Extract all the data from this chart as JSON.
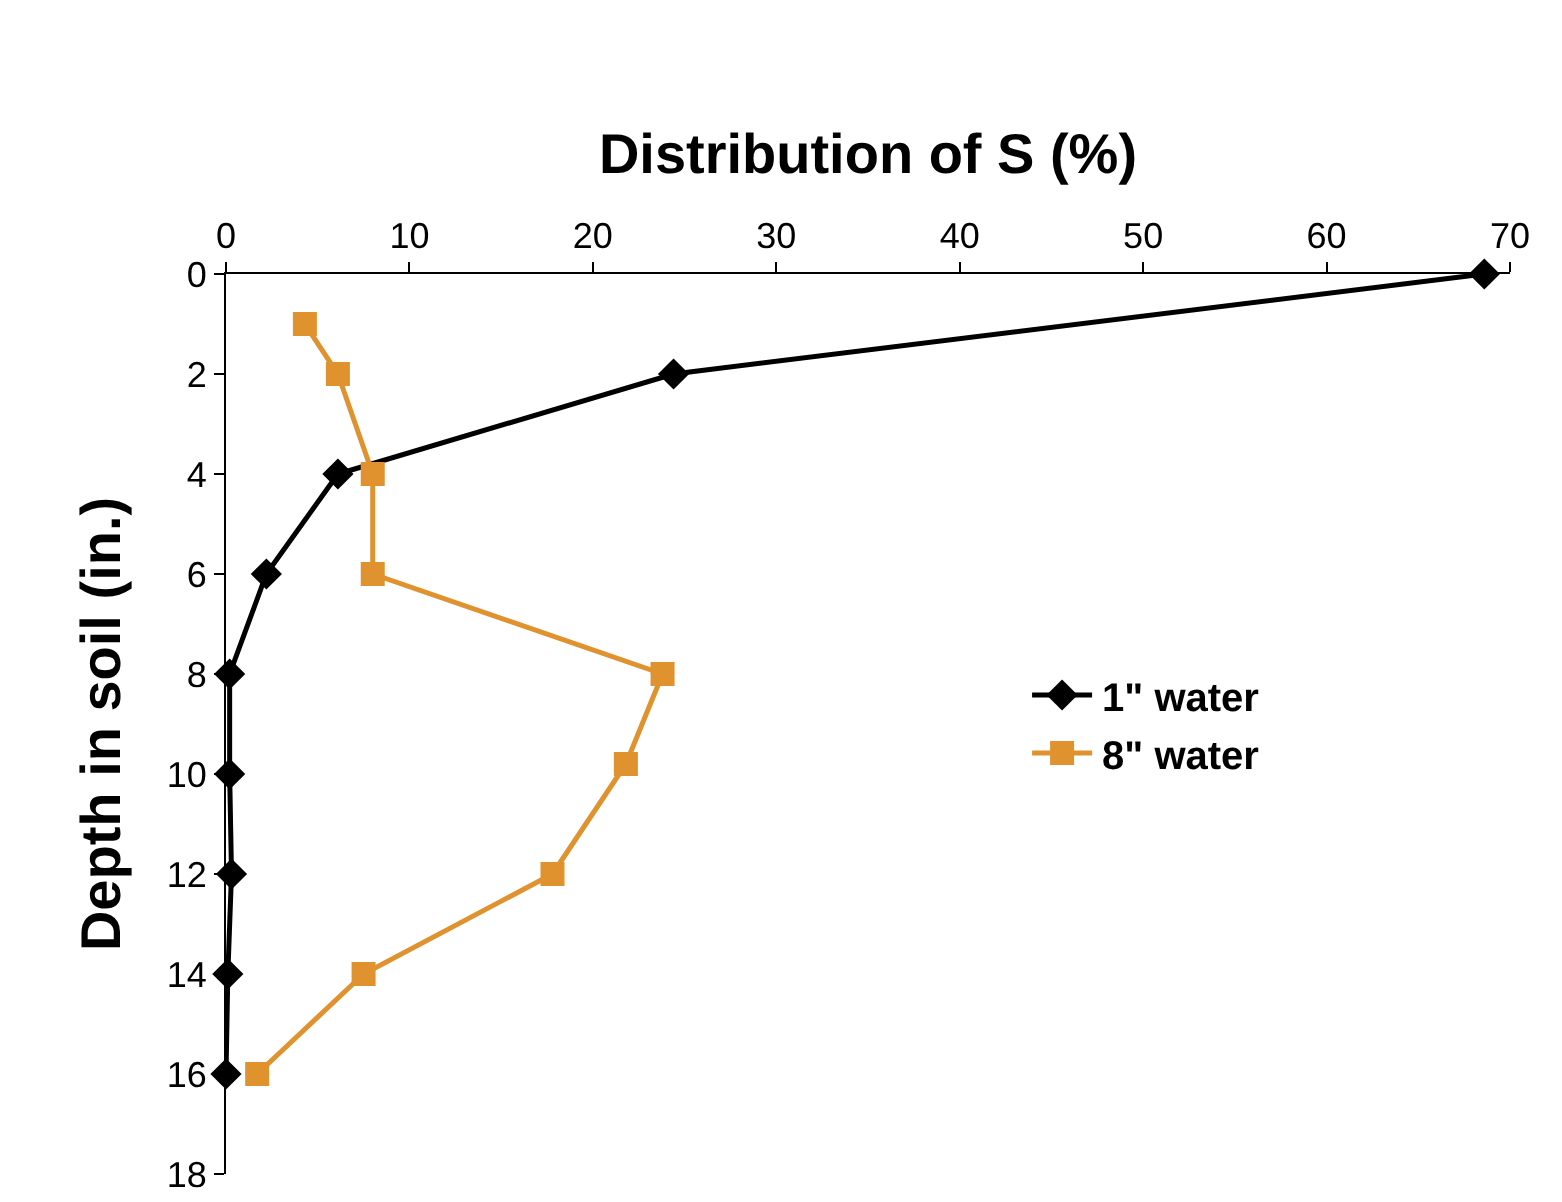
{
  "chart_data": {
    "type": "line",
    "xlabel": "Distribution of S (%)",
    "ylabel": "Depth in soil (in.)",
    "xlim": [
      0,
      70
    ],
    "xticks": [
      0,
      10,
      20,
      30,
      40,
      50,
      60,
      70
    ],
    "ylim": [
      18,
      0
    ],
    "yticks": [
      0,
      2,
      4,
      6,
      8,
      10,
      12,
      14,
      16,
      18
    ],
    "grid": false,
    "legend": "right",
    "line_style": "solid",
    "series": [
      {
        "name": "1\" water",
        "color": "#000000",
        "marker": "diamond",
        "x": [
          68.6,
          24.4,
          6.1,
          2.2,
          0.2,
          0.2,
          0.3,
          0.1,
          0
        ],
        "values": [
          0,
          2,
          4,
          6,
          8,
          10,
          12,
          14,
          16
        ]
      },
      {
        "name": "8\" water",
        "color": "#e0922f",
        "marker": "square",
        "x": [
          4.3,
          6.1,
          8.0,
          8.0,
          23.8,
          21.8,
          17.8,
          7.5,
          1.7
        ],
        "values": [
          1,
          2,
          4,
          6,
          8,
          9.8,
          12,
          14,
          16
        ]
      }
    ]
  }
}
